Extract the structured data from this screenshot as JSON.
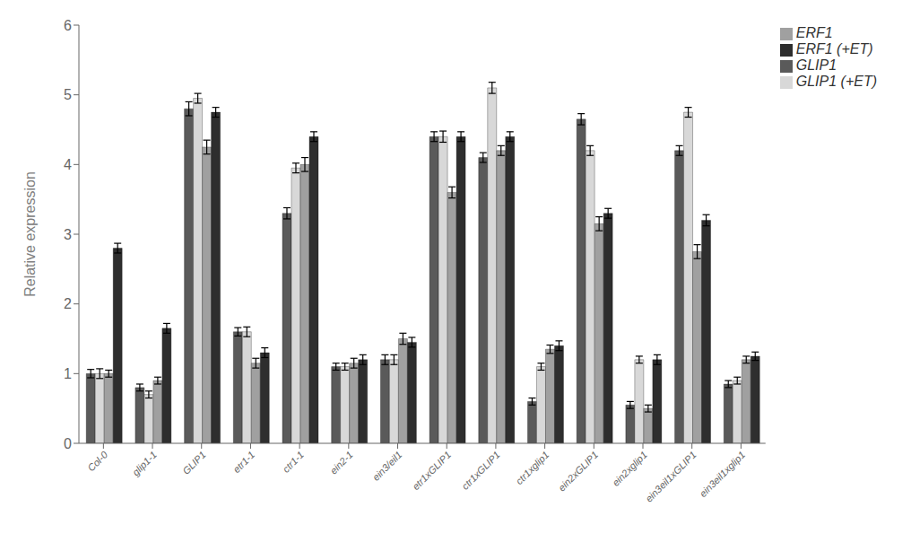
{
  "chart_data": {
    "type": "bar",
    "categories": [
      "Col-0",
      "glip1-1",
      "GLIP1",
      "etr1-1",
      "ctr1-1",
      "ein2-1",
      "ein3/eil1",
      "etr1xGLIP1",
      "ctr1xGLIP1",
      "ctr1xglip1",
      "ein2xGLIP1",
      "ein2xglip1",
      "ein3eil1xGLIP1",
      "ein3eil1xglip1"
    ],
    "series": [
      {
        "name": "GLIP1",
        "color": "#5a5a5a",
        "values": [
          1.0,
          0.8,
          4.8,
          1.6,
          3.3,
          1.1,
          1.2,
          4.4,
          4.1,
          0.6,
          4.65,
          0.55,
          4.2,
          0.85
        ],
        "errors": [
          0.06,
          0.05,
          0.1,
          0.06,
          0.08,
          0.05,
          0.07,
          0.07,
          0.07,
          0.05,
          0.08,
          0.05,
          0.07,
          0.05
        ]
      },
      {
        "name": "GLIP1 (+ET)",
        "color": "#d8d8d8",
        "values": [
          1.0,
          0.7,
          4.95,
          1.6,
          3.95,
          1.1,
          1.2,
          4.4,
          5.1,
          1.1,
          4.2,
          1.2,
          4.75,
          0.9
        ],
        "errors": [
          0.07,
          0.05,
          0.07,
          0.07,
          0.07,
          0.05,
          0.07,
          0.08,
          0.08,
          0.05,
          0.07,
          0.05,
          0.07,
          0.05
        ]
      },
      {
        "name": "ERF1",
        "color": "#a0a0a0",
        "values": [
          1.0,
          0.9,
          4.25,
          1.15,
          4.0,
          1.15,
          1.5,
          3.6,
          4.2,
          1.35,
          3.15,
          0.5,
          2.75,
          1.2
        ],
        "errors": [
          0.05,
          0.05,
          0.1,
          0.07,
          0.1,
          0.07,
          0.08,
          0.08,
          0.07,
          0.06,
          0.1,
          0.05,
          0.1,
          0.05
        ]
      },
      {
        "name": "ERF1 (+ET)",
        "color": "#2e2e2e",
        "values": [
          2.8,
          1.65,
          4.75,
          1.3,
          4.4,
          1.2,
          1.45,
          4.4,
          4.4,
          1.4,
          3.3,
          1.2,
          3.2,
          1.25
        ],
        "errors": [
          0.07,
          0.07,
          0.07,
          0.07,
          0.07,
          0.07,
          0.07,
          0.07,
          0.07,
          0.07,
          0.07,
          0.07,
          0.08,
          0.06
        ]
      }
    ],
    "ylabel": "Relative expression",
    "ylim": [
      0,
      6
    ],
    "yticks": [
      0,
      1,
      2,
      3,
      4,
      5,
      6
    ],
    "grid": false,
    "legend": "upper right"
  }
}
